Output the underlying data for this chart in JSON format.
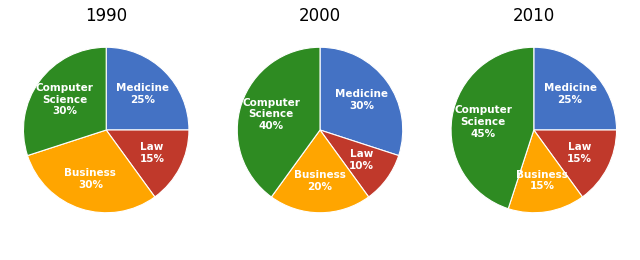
{
  "years": [
    "1990",
    "2000",
    "2010"
  ],
  "fields": [
    "Medicine",
    "Law",
    "Business",
    "Computer\nScience"
  ],
  "values": [
    [
      25,
      15,
      30,
      30
    ],
    [
      30,
      10,
      20,
      40
    ],
    [
      25,
      15,
      15,
      45
    ]
  ],
  "pct_labels": [
    [
      "25%",
      "15%",
      "30%",
      "30%"
    ],
    [
      "30%",
      "10%",
      "20%",
      "40%"
    ],
    [
      "25%",
      "15%",
      "15%",
      "45%"
    ]
  ],
  "colors": [
    "#4472C4",
    "#C0392B",
    "#FFA500",
    "#2E8B22"
  ],
  "title_fontsize": 12,
  "label_fontsize": 7.5,
  "background_color": "#FFFFFF"
}
